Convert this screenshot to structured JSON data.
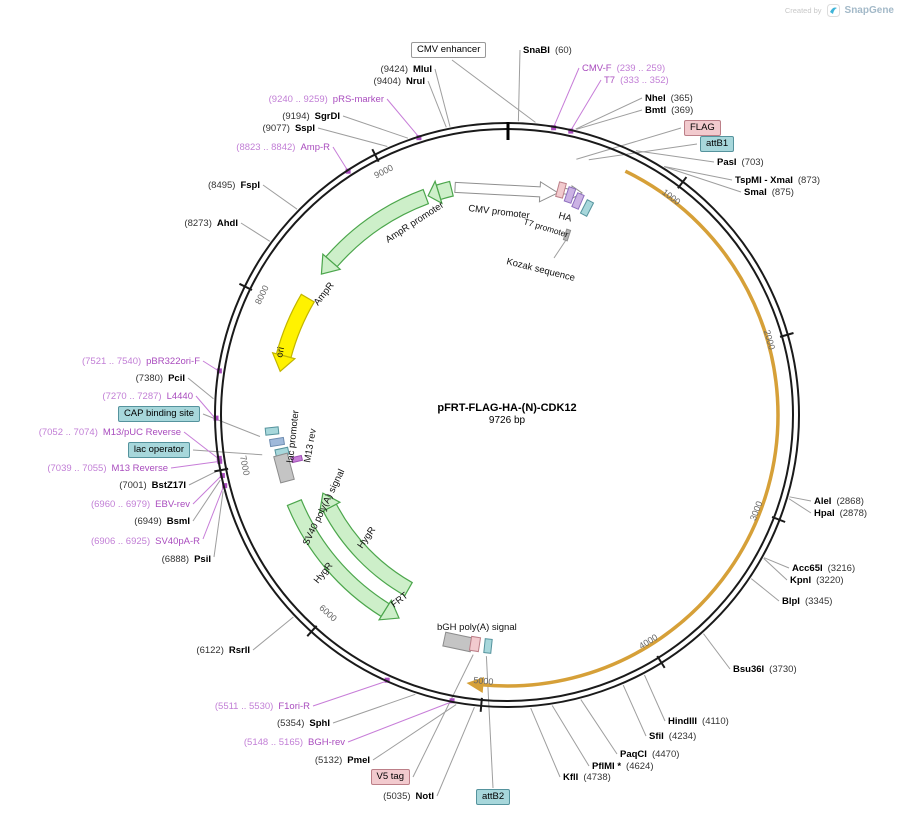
{
  "watermark": {
    "created_by": "Created by",
    "brand": "SnapGene"
  },
  "plasmid": {
    "name": "pFRT-FLAG-HA-(N)-CDK12",
    "size": "9726 bp"
  },
  "ticks": {
    "k1": "1000",
    "k2": "2000",
    "k3": "3000",
    "k4": "4000",
    "k5": "5000",
    "k6": "6000",
    "k7": "7000",
    "k8": "8000",
    "k9": "9000"
  },
  "enzymes": {
    "snabi": {
      "name": "SnaBI",
      "pos": "(60)"
    },
    "nhei": {
      "name": "NheI",
      "pos": "(365)"
    },
    "bmti": {
      "name": "BmtI",
      "pos": "(369)"
    },
    "pasi": {
      "name": "PasI",
      "pos": "(703)"
    },
    "tspmi_xmai": {
      "name": "TspMI - XmaI",
      "pos": "(873)"
    },
    "smai": {
      "name": "SmaI",
      "pos": "(875)"
    },
    "alei": {
      "name": "AleI",
      "pos": "(2868)"
    },
    "hpai": {
      "name": "HpaI",
      "pos": "(2878)"
    },
    "acc65i": {
      "name": "Acc65I",
      "pos": "(3216)"
    },
    "kpni": {
      "name": "KpnI",
      "pos": "(3220)"
    },
    "blpi": {
      "name": "BlpI",
      "pos": "(3345)"
    },
    "bsu36i": {
      "name": "Bsu36I",
      "pos": "(3730)"
    },
    "hindiii": {
      "name": "HindIII",
      "pos": "(4110)"
    },
    "sfii": {
      "name": "SfiI",
      "pos": "(4234)"
    },
    "paqci": {
      "name": "PaqCI",
      "pos": "(4470)"
    },
    "pflmi": {
      "name": "PflMI *",
      "pos": "(4624)"
    },
    "kfli": {
      "name": "KflI",
      "pos": "(4738)"
    },
    "noti": {
      "name": "NotI",
      "pos": "(5035)"
    },
    "pmei": {
      "name": "PmeI",
      "pos": "(5132)"
    },
    "sphi": {
      "name": "SphI",
      "pos": "(5354)"
    },
    "rsrii": {
      "name": "RsrII",
      "pos": "(6122)"
    },
    "psii": {
      "name": "PsiI",
      "pos": "(6888)"
    },
    "bsmi": {
      "name": "BsmI",
      "pos": "(6949)"
    },
    "bstz17i": {
      "name": "BstZ17I",
      "pos": "(7001)"
    },
    "pcii": {
      "name": "PciI",
      "pos": "(7380)"
    },
    "ahdi": {
      "name": "AhdI",
      "pos": "(8273)"
    },
    "fspi": {
      "name": "FspI",
      "pos": "(8495)"
    },
    "sspi": {
      "name": "SspI",
      "pos": "(9077)"
    },
    "sgrdi": {
      "name": "SgrDI",
      "pos": "(9194)"
    },
    "nrui": {
      "name": "NruI",
      "pos": "(9404)"
    },
    "mlui": {
      "name": "MluI",
      "pos": "(9424)"
    }
  },
  "primers": {
    "cmvf": {
      "name": "CMV-F",
      "pos": "(239 .. 259)"
    },
    "t7": {
      "name": "T7",
      "pos": "(333 .. 352)"
    },
    "bghrev": {
      "name": "BGH-rev",
      "pos": "(5148 .. 5165)"
    },
    "f1orir": {
      "name": "F1ori-R",
      "pos": "(5511 .. 5530)"
    },
    "sv40par": {
      "name": "SV40pA-R",
      "pos": "(6906 .. 6925)"
    },
    "ebvrev": {
      "name": "EBV-rev",
      "pos": "(6960 .. 6979)"
    },
    "m13rev": {
      "name": "M13 Reverse",
      "pos": "(7039 .. 7055)"
    },
    "m13puc": {
      "name": "M13/pUC Reverse",
      "pos": "(7052 .. 7074)"
    },
    "l4440": {
      "name": "L4440",
      "pos": "(7270 .. 7287)"
    },
    "pbr322orif": {
      "name": "pBR322ori-F",
      "pos": "(7521 .. 7540)"
    },
    "ampr": {
      "name": "Amp-R",
      "pos": "(8823 .. 8842)"
    },
    "prsmarker": {
      "name": "pRS-marker",
      "pos": "(9240 .. 9259)"
    }
  },
  "features": {
    "cmv_enhancer": "CMV enhancer",
    "cmv_promoter": "CMV promoter",
    "t7_promoter": "T7 promoter",
    "ha": "HA",
    "flag": "FLAG",
    "attb1": "attB1",
    "kozak": "Kozak sequence",
    "ampr_promoter": "AmpR promoter",
    "ampr": "AmpR",
    "ori": "ori",
    "lac_promoter": "lac promoter",
    "m13_rev": "M13 rev",
    "cap_binding_site": "CAP binding site",
    "lac_operator": "lac operator",
    "sv40_polya": "SV40 poly(A) signal",
    "hygr1": "HygR",
    "hygr2": "HygR",
    "frt": "FRT",
    "bgh_polya": "bGH poly(A) signal",
    "v5_tag": "V5 tag",
    "attb2": "attB2"
  }
}
